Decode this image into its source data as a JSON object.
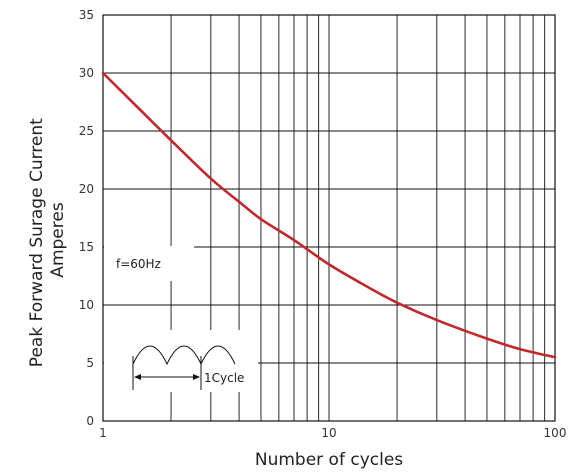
{
  "chart_data": {
    "type": "line",
    "x_scale": "log",
    "xlim": [
      1,
      100
    ],
    "ylim": [
      0,
      35
    ],
    "grid": true,
    "xlabel": "Number of cycles",
    "ylabel": "Peak Forward Surage Current\nAmperes",
    "x_ticks": [
      "1",
      "10",
      "100"
    ],
    "y_ticks": [
      "0",
      "5",
      "10",
      "15",
      "20",
      "25",
      "30",
      "35"
    ],
    "series": [
      {
        "color": "#c0282d",
        "x": [
          1,
          1.5,
          2,
          3,
          4,
          5,
          7,
          10,
          15,
          20,
          30,
          50,
          70,
          100
        ],
        "y": [
          30,
          26.6,
          24.2,
          20.9,
          18.9,
          17.4,
          15.6,
          13.5,
          11.5,
          10.2,
          8.7,
          7.1,
          6.2,
          5.5
        ]
      }
    ],
    "annotations": {
      "frequency": "f=60Hz",
      "cycle_label": "1Cycle"
    }
  }
}
